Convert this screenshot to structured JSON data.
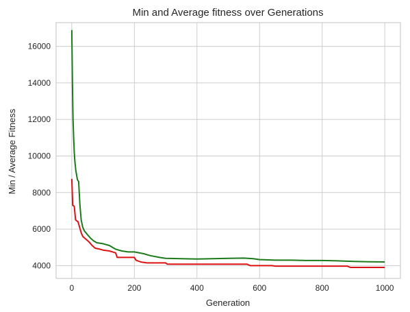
{
  "chart_data": {
    "type": "line",
    "title": "Min and Average fitness over Generations",
    "xlabel": "Generation",
    "ylabel": "Min / Average Fitness",
    "xlim": [
      -50,
      1050
    ],
    "ylim": [
      3300,
      17300
    ],
    "xticks": [
      0,
      200,
      400,
      600,
      800,
      1000
    ],
    "yticks": [
      4000,
      6000,
      8000,
      10000,
      12000,
      14000,
      16000
    ],
    "grid": true,
    "legend": "none",
    "series": [
      {
        "color": "#dd1111",
        "role": "min",
        "points": [
          [
            0,
            8750
          ],
          [
            3,
            7300
          ],
          [
            8,
            7250
          ],
          [
            12,
            6500
          ],
          [
            20,
            6400
          ],
          [
            25,
            6100
          ],
          [
            30,
            5800
          ],
          [
            35,
            5600
          ],
          [
            45,
            5450
          ],
          [
            55,
            5300
          ],
          [
            65,
            5100
          ],
          [
            75,
            4950
          ],
          [
            90,
            4900
          ],
          [
            100,
            4850
          ],
          [
            120,
            4800
          ],
          [
            140,
            4700
          ],
          [
            145,
            4450
          ],
          [
            200,
            4450
          ],
          [
            205,
            4300
          ],
          [
            220,
            4200
          ],
          [
            240,
            4150
          ],
          [
            300,
            4150
          ],
          [
            305,
            4080
          ],
          [
            500,
            4080
          ],
          [
            560,
            4080
          ],
          [
            570,
            4000
          ],
          [
            640,
            4000
          ],
          [
            650,
            3970
          ],
          [
            800,
            3970
          ],
          [
            880,
            3970
          ],
          [
            890,
            3900
          ],
          [
            1000,
            3900
          ]
        ]
      },
      {
        "color": "#1a7a1a",
        "role": "average",
        "points": [
          [
            0,
            16900
          ],
          [
            2,
            14000
          ],
          [
            4,
            12000
          ],
          [
            6,
            11000
          ],
          [
            8,
            10200
          ],
          [
            10,
            9700
          ],
          [
            13,
            9200
          ],
          [
            18,
            8700
          ],
          [
            22,
            8600
          ],
          [
            26,
            7300
          ],
          [
            30,
            6500
          ],
          [
            35,
            6100
          ],
          [
            40,
            5900
          ],
          [
            50,
            5700
          ],
          [
            60,
            5500
          ],
          [
            70,
            5350
          ],
          [
            80,
            5250
          ],
          [
            100,
            5200
          ],
          [
            120,
            5100
          ],
          [
            140,
            4900
          ],
          [
            160,
            4800
          ],
          [
            180,
            4750
          ],
          [
            200,
            4750
          ],
          [
            230,
            4650
          ],
          [
            250,
            4550
          ],
          [
            280,
            4450
          ],
          [
            300,
            4400
          ],
          [
            350,
            4380
          ],
          [
            400,
            4360
          ],
          [
            450,
            4380
          ],
          [
            500,
            4400
          ],
          [
            550,
            4410
          ],
          [
            580,
            4380
          ],
          [
            600,
            4330
          ],
          [
            650,
            4300
          ],
          [
            700,
            4300
          ],
          [
            750,
            4280
          ],
          [
            800,
            4280
          ],
          [
            850,
            4260
          ],
          [
            900,
            4230
          ],
          [
            950,
            4210
          ],
          [
            1000,
            4200
          ]
        ]
      }
    ]
  }
}
